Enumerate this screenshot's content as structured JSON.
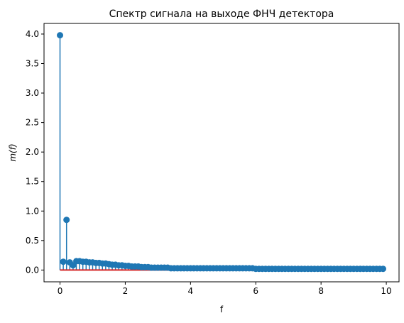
{
  "chart_data": {
    "type": "stem",
    "title": "Спектр сигнала на выходе ФНЧ детектора",
    "xlabel": "f",
    "ylabel": "m(f)",
    "xlim": [
      -0.49,
      10.39
    ],
    "ylim": [
      -0.2,
      4.18
    ],
    "xticks": [
      0,
      2,
      4,
      6,
      8,
      10
    ],
    "yticks": [
      0.0,
      0.5,
      1.0,
      1.5,
      2.0,
      2.5,
      3.0,
      3.5,
      4.0
    ],
    "xtick_labels": [
      "0",
      "2",
      "4",
      "6",
      "8",
      "10"
    ],
    "ytick_labels": [
      "0.0",
      "0.5",
      "1.0",
      "1.5",
      "2.0",
      "2.5",
      "3.0",
      "3.5",
      "4.0"
    ],
    "x_step": 0.1,
    "x": [
      0,
      0.1,
      0.2,
      0.3,
      0.4,
      0.5,
      0.6,
      0.7,
      0.8,
      0.9,
      1.0,
      1.1,
      1.2,
      1.3,
      1.4,
      1.5,
      1.6,
      1.7,
      1.8,
      1.9,
      2.0,
      2.1,
      2.2,
      2.3,
      2.4,
      2.5,
      2.6,
      2.7,
      2.8,
      2.9,
      3.0,
      3.1,
      3.2,
      3.3,
      3.4,
      3.5,
      3.6,
      3.7,
      3.8,
      3.9,
      4.0,
      4.1,
      4.2,
      4.3,
      4.4,
      4.5,
      4.6,
      4.7,
      4.8,
      4.9,
      5.0,
      5.1,
      5.2,
      5.3,
      5.4,
      5.5,
      5.6,
      5.7,
      5.8,
      5.9,
      6.0,
      6.1,
      6.2,
      6.3,
      6.4,
      6.5,
      6.6,
      6.7,
      6.8,
      6.9,
      7.0,
      7.1,
      7.2,
      7.3,
      7.4,
      7.5,
      7.6,
      7.7,
      7.8,
      7.9,
      8.0,
      8.1,
      8.2,
      8.3,
      8.4,
      8.5,
      8.6,
      8.7,
      8.8,
      8.9,
      9.0,
      9.1,
      9.2,
      9.3,
      9.4,
      9.5,
      9.6,
      9.7,
      9.8,
      9.9
    ],
    "y": [
      3.98,
      0.14,
      0.85,
      0.13,
      0.08,
      0.15,
      0.15,
      0.14,
      0.14,
      0.13,
      0.13,
      0.12,
      0.12,
      0.11,
      0.11,
      0.1,
      0.09,
      0.09,
      0.08,
      0.08,
      0.07,
      0.07,
      0.06,
      0.06,
      0.06,
      0.05,
      0.05,
      0.05,
      0.04,
      0.04,
      0.04,
      0.04,
      0.04,
      0.04,
      0.03,
      0.03,
      0.03,
      0.03,
      0.03,
      0.03,
      0.03,
      0.03,
      0.03,
      0.03,
      0.03,
      0.03,
      0.03,
      0.03,
      0.03,
      0.03,
      0.03,
      0.03,
      0.03,
      0.03,
      0.03,
      0.03,
      0.03,
      0.03,
      0.03,
      0.03,
      0.02,
      0.02,
      0.02,
      0.02,
      0.02,
      0.02,
      0.02,
      0.02,
      0.02,
      0.02,
      0.02,
      0.02,
      0.02,
      0.02,
      0.02,
      0.02,
      0.02,
      0.02,
      0.02,
      0.02,
      0.02,
      0.02,
      0.02,
      0.02,
      0.02,
      0.02,
      0.02,
      0.02,
      0.02,
      0.02,
      0.02,
      0.02,
      0.02,
      0.02,
      0.02,
      0.02,
      0.02,
      0.02,
      0.02,
      0.02
    ],
    "marker_color": "#1f77b4",
    "baseline_color": "#d62728",
    "baseline_value": 0,
    "grid": false,
    "legend": "none"
  }
}
